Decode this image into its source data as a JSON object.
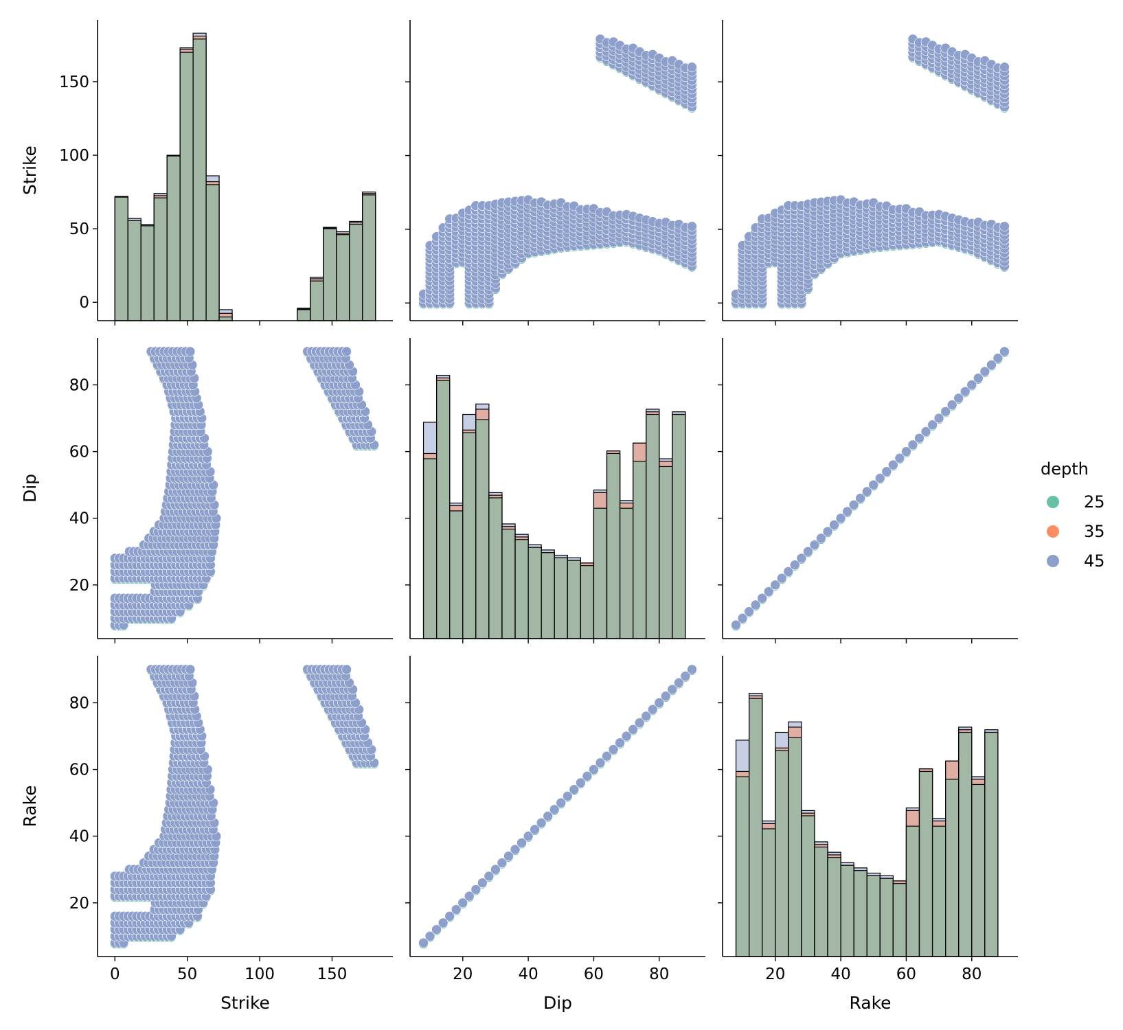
{
  "chart_data": {
    "type": "pairplot",
    "variables": [
      "Strike",
      "Dip",
      "Rake"
    ],
    "hue": {
      "title": "depth",
      "levels": [
        {
          "label": "25",
          "color": "#66c2a5"
        },
        {
          "label": "35",
          "color": "#fc8d62"
        },
        {
          "label": "45",
          "color": "#8da0cb"
        }
      ]
    },
    "axes": {
      "Strike": {
        "range": [
          -12,
          192
        ],
        "ticks": [
          0,
          50,
          100,
          150
        ]
      },
      "Dip": {
        "range": [
          3.9,
          94.1
        ],
        "ticks": [
          20,
          40,
          60,
          80
        ]
      },
      "Rake": {
        "range": [
          3.9,
          94.1
        ],
        "ticks": [
          20,
          40,
          60,
          80
        ]
      }
    },
    "histograms": {
      "Strike": {
        "count_range": [
          -12.5,
          192
        ],
        "count_ticks": [
          0,
          50,
          100,
          150
        ],
        "bins": [
          [
            0,
            9,
            72,
            71.5,
            71.5
          ],
          [
            9,
            18,
            57,
            55.5,
            55.5
          ],
          [
            18,
            27,
            53,
            52,
            52
          ],
          [
            27,
            36,
            74,
            72.5,
            71
          ],
          [
            36,
            45,
            100,
            99.5,
            99.5
          ],
          [
            45,
            54,
            173,
            172,
            170
          ],
          [
            54,
            63,
            183,
            181,
            179
          ],
          [
            63,
            72,
            86,
            82,
            80
          ],
          [
            72,
            81,
            -5,
            -7.5,
            -10
          ],
          [
            81,
            90,
            -12.5,
            -12.5,
            -12.5
          ],
          [
            90,
            99,
            -12.5,
            -12.5,
            -12.5
          ],
          [
            99,
            108,
            -12.5,
            -12.5,
            -12.5
          ],
          [
            108,
            117,
            -12.5,
            -12.5,
            -12.5
          ],
          [
            117,
            126,
            -12.5,
            -12.5,
            -12.5
          ],
          [
            126,
            135,
            -4,
            -4.5,
            -5
          ],
          [
            135,
            144,
            17,
            16,
            14.5
          ],
          [
            144,
            153,
            51,
            50.5,
            50
          ],
          [
            153,
            162,
            48,
            47,
            46
          ],
          [
            162,
            171,
            55,
            54,
            53
          ],
          [
            171,
            180,
            75,
            74,
            73
          ]
        ]
      },
      "Dip": {
        "bins": [
          [
            8,
            12,
            41.5,
            35.5,
            34.5
          ],
          [
            12,
            16,
            50.5,
            50,
            49.5
          ],
          [
            16,
            20,
            26,
            25.5,
            24.5
          ],
          [
            20,
            24,
            43,
            40,
            39.5
          ],
          [
            24,
            28,
            45,
            44,
            42
          ],
          [
            28,
            32,
            28,
            27.5,
            27
          ],
          [
            32,
            36,
            22,
            21.5,
            21
          ],
          [
            36,
            40,
            20,
            19.5,
            19
          ],
          [
            40,
            44,
            18,
            17.5,
            17.5
          ],
          [
            44,
            48,
            17,
            16.5,
            16.5
          ],
          [
            48,
            52,
            16,
            15.5,
            15.5
          ],
          [
            52,
            56,
            15.5,
            15,
            15
          ],
          [
            56,
            60,
            14.5,
            14.5,
            14
          ],
          [
            60,
            64,
            28.5,
            28,
            25
          ],
          [
            64,
            68,
            36,
            36,
            35.5
          ],
          [
            68,
            72,
            26.5,
            26,
            25
          ],
          [
            72,
            76,
            37.5,
            37.5,
            34
          ],
          [
            76,
            80,
            44,
            43.5,
            43
          ],
          [
            80,
            84,
            34.5,
            34,
            33
          ],
          [
            84,
            88,
            43.5,
            43,
            43
          ]
        ]
      },
      "Rake": {
        "bins": [
          [
            8,
            12,
            41.5,
            35.5,
            34.5
          ],
          [
            12,
            16,
            50.5,
            50,
            49.5
          ],
          [
            16,
            20,
            26,
            25.5,
            24.5
          ],
          [
            20,
            24,
            43,
            40,
            39.5
          ],
          [
            24,
            28,
            45,
            44,
            42
          ],
          [
            28,
            32,
            28,
            27.5,
            27
          ],
          [
            32,
            36,
            22,
            21.5,
            21
          ],
          [
            36,
            40,
            20,
            19.5,
            19
          ],
          [
            40,
            44,
            18,
            17.5,
            17.5
          ],
          [
            44,
            48,
            17,
            16.5,
            16.5
          ],
          [
            48,
            52,
            16,
            15.5,
            15.5
          ],
          [
            52,
            56,
            15.5,
            15,
            15
          ],
          [
            56,
            60,
            14.5,
            14.5,
            14
          ],
          [
            60,
            64,
            28.5,
            28,
            25
          ],
          [
            64,
            68,
            36,
            36,
            35.5
          ],
          [
            68,
            72,
            26.5,
            26,
            25
          ],
          [
            72,
            76,
            37.5,
            37.5,
            34
          ],
          [
            76,
            80,
            44,
            43.5,
            43
          ],
          [
            80,
            84,
            34.5,
            34,
            33
          ],
          [
            84,
            88,
            43.5,
            43,
            43
          ]
        ]
      }
    },
    "scatter_summary": {
      "Dip_vs_Strike": {
        "upper_cluster": {
          "dip": [
            62,
            90
          ],
          "strike_at_dip_min": [
            167,
            180
          ],
          "strike_at_dip_max": [
            133,
            161
          ]
        },
        "lower_cluster": {
          "dip_range": [
            8,
            90
          ],
          "strike_profile": [
            [
              8,
              0,
              8
            ],
            [
              10,
              0,
              40
            ],
            [
              16,
              0,
              57
            ],
            [
              20,
              25,
              62
            ],
            [
              24,
              0,
              66
            ],
            [
              28,
              0,
              68
            ],
            [
              32,
              20,
              70
            ],
            [
              40,
              34,
              70
            ],
            [
              50,
              38,
              68
            ],
            [
              60,
              40,
              64
            ],
            [
              70,
              42,
              60
            ],
            [
              80,
              36,
              56
            ],
            [
              90,
              25,
              52
            ]
          ]
        },
        "gaps": [
          [
            14,
            22,
            0,
            28
          ]
        ]
      },
      "identity_line": {
        "from": 8,
        "to": 90,
        "step": 2
      }
    }
  }
}
